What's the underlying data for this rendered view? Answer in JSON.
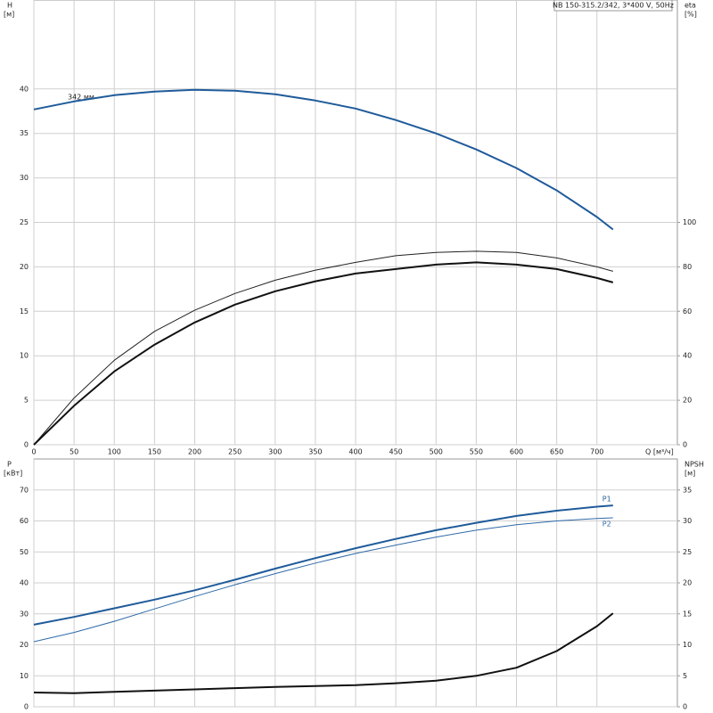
{
  "chart_data": [
    {
      "type": "line",
      "title": "NB 150-315.2/342, 3*400 V, 50Hz",
      "ylabel": "H",
      "yunit": "[м]",
      "y2label": "eta",
      "y2unit": "[%]",
      "xlabel": "Q [м³/ч]",
      "annotations": [
        "342 мм"
      ],
      "x": [
        0,
        50,
        100,
        150,
        200,
        250,
        300,
        350,
        400,
        450,
        500,
        550,
        600,
        650,
        700,
        720
      ],
      "xlim": [
        0,
        800
      ],
      "xticks": [
        0,
        50,
        100,
        150,
        200,
        250,
        300,
        350,
        400,
        450,
        500,
        550,
        600,
        650,
        700
      ],
      "ylim": [
        0,
        50
      ],
      "yticks": [
        0,
        5,
        10,
        15,
        20,
        25,
        30,
        35,
        40
      ],
      "y2lim": [
        0,
        200
      ],
      "y2ticks": [
        0,
        20,
        40,
        60,
        80,
        100
      ],
      "grid": true,
      "xtick_labels": true,
      "series": [
        {
          "color": "#1f5b9a",
          "linewidth": 2,
          "values": [
            37.7,
            38.6,
            39.3,
            39.7,
            39.9,
            39.8,
            39.4,
            38.7,
            37.8,
            36.5,
            35.0,
            33.2,
            31.1,
            28.6,
            25.6,
            24.2
          ]
        },
        {
          "color": "#222222",
          "linewidth": 1,
          "axis": "y2",
          "values": [
            0,
            21,
            38,
            51,
            60.5,
            68,
            74,
            78.5,
            82,
            85,
            86.5,
            87,
            86.5,
            84,
            80,
            78
          ]
        },
        {
          "color": "#111111",
          "linewidth": 2,
          "axis": "y2",
          "values": [
            0,
            17.5,
            33,
            45,
            55,
            63,
            69,
            73.5,
            77,
            79,
            81,
            82,
            81,
            79,
            75,
            73
          ]
        }
      ]
    },
    {
      "type": "line",
      "ylabel": "P",
      "yunit": "[кВт]",
      "y2label": "NPSH",
      "y2unit": "[м]",
      "x": [
        0,
        50,
        100,
        150,
        200,
        250,
        300,
        350,
        400,
        450,
        500,
        550,
        600,
        650,
        700,
        720
      ],
      "xlim": [
        0,
        800
      ],
      "xticks": [
        0,
        50,
        100,
        150,
        200,
        250,
        300,
        350,
        400,
        450,
        500,
        550,
        600,
        650,
        700
      ],
      "ylim": [
        0,
        80
      ],
      "yticks": [
        0,
        10,
        20,
        30,
        40,
        50,
        60,
        70
      ],
      "y2lim": [
        0,
        40
      ],
      "y2ticks": [
        0,
        5,
        10,
        15,
        20,
        25,
        30,
        35
      ],
      "grid": true,
      "xtick_labels": false,
      "series": [
        {
          "name": "P1",
          "color": "#1f5b9a",
          "linewidth": 2,
          "values": [
            26.5,
            29,
            31.8,
            34.6,
            37.6,
            41,
            44.6,
            48,
            51.2,
            54.2,
            57,
            59.4,
            61.6,
            63.3,
            64.6,
            65
          ]
        },
        {
          "name": "P2",
          "color": "#2f6aa8",
          "linewidth": 1,
          "values": [
            21,
            24,
            27.6,
            31.6,
            35.6,
            39.4,
            43,
            46.4,
            49.5,
            52.2,
            54.8,
            57,
            58.8,
            60,
            60.8,
            61
          ]
        },
        {
          "color": "#111111",
          "linewidth": 2,
          "axis": "y2",
          "values": [
            2.3,
            2.2,
            2.4,
            2.6,
            2.8,
            3.0,
            3.2,
            3.35,
            3.5,
            3.8,
            4.2,
            5,
            6.3,
            9,
            13,
            15.1
          ]
        }
      ]
    }
  ]
}
